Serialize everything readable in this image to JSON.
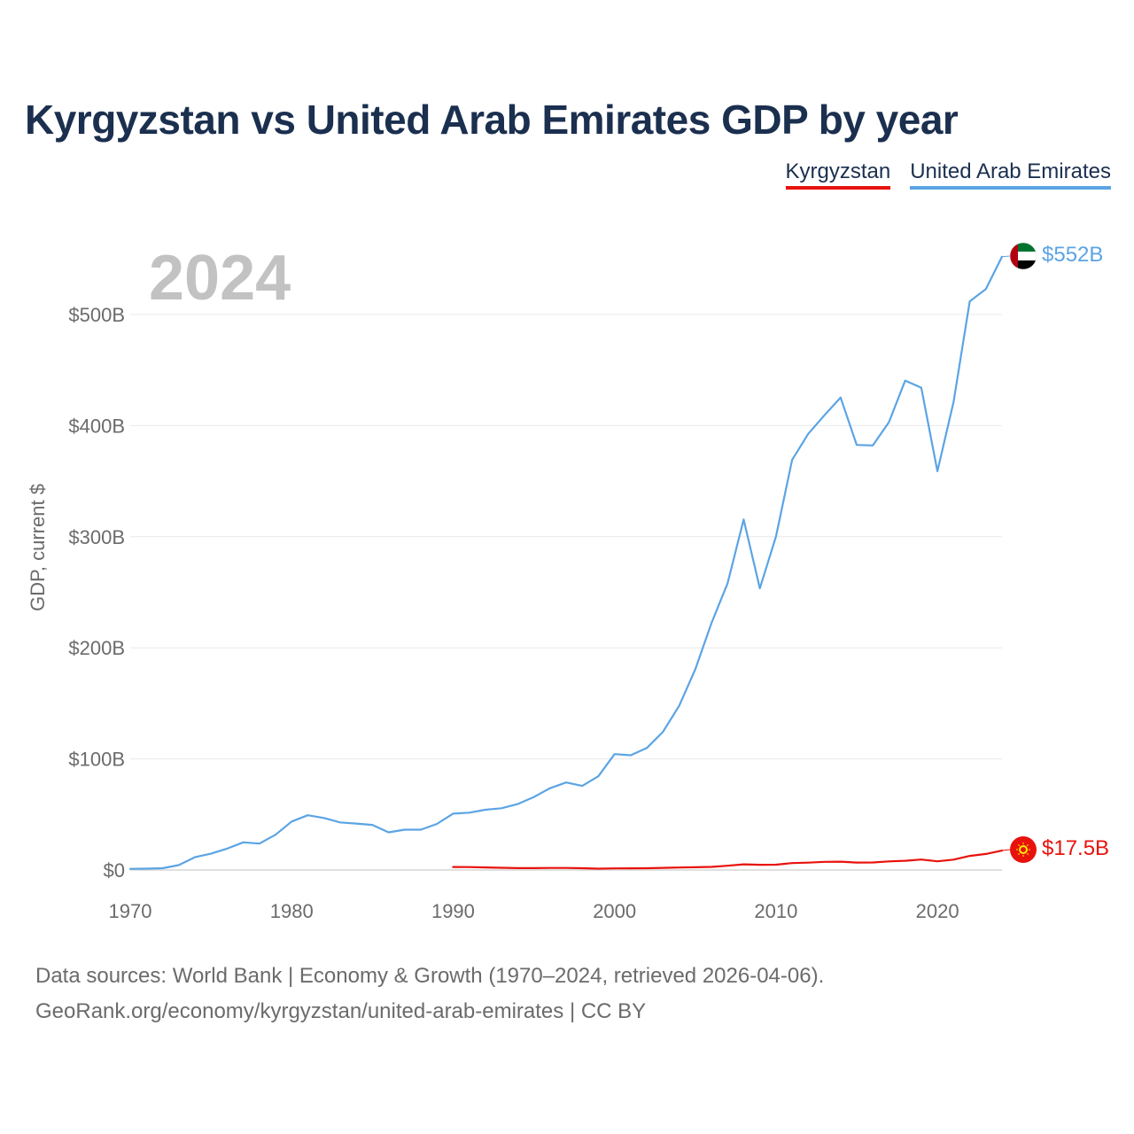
{
  "title": "Kyrgyzstan vs United Arab Emirates GDP by year",
  "legend": [
    {
      "label": "Kyrgyzstan",
      "color": "#e8120c"
    },
    {
      "label": "United Arab Emirates",
      "color": "#5ba4e5"
    }
  ],
  "year_label": "2024",
  "footer": {
    "line1": "Data sources: World Bank | Economy & Growth (1970–2024, retrieved 2026-04-06).",
    "line2": "GeoRank.org/economy/kyrgyzstan/united-arab-emirates | CC BY"
  },
  "chart_data": {
    "type": "line",
    "title": "Kyrgyzstan vs United Arab Emirates GDP by year",
    "xlabel": "",
    "ylabel": "GDP, current $",
    "xlim": [
      1970,
      2024
    ],
    "ylim": [
      0,
      560
    ],
    "unit": "billions of current US$",
    "x_ticks": [
      1970,
      1980,
      1990,
      2000,
      2010,
      2020
    ],
    "x_tick_labels": [
      "1970",
      "1980",
      "1990",
      "2000",
      "2010",
      "2020"
    ],
    "y_ticks": [
      0,
      100,
      200,
      300,
      400,
      500
    ],
    "y_tick_labels": [
      "$0",
      "$100B",
      "$200B",
      "$300B",
      "$400B",
      "$500B"
    ],
    "grid": true,
    "series": [
      {
        "name": "United Arab Emirates",
        "color": "#5ba4e5",
        "end_label": "$552B",
        "flag_icon": "uae-flag-icon",
        "x": [
          1970,
          1971,
          1972,
          1973,
          1974,
          1975,
          1976,
          1977,
          1978,
          1979,
          1980,
          1981,
          1982,
          1983,
          1984,
          1985,
          1986,
          1987,
          1988,
          1989,
          1990,
          1991,
          1992,
          1993,
          1994,
          1995,
          1996,
          1997,
          1998,
          1999,
          2000,
          2001,
          2002,
          2003,
          2004,
          2005,
          2006,
          2007,
          2008,
          2009,
          2010,
          2011,
          2012,
          2013,
          2014,
          2015,
          2016,
          2017,
          2018,
          2019,
          2020,
          2021,
          2022,
          2023,
          2024
        ],
        "values": [
          1,
          1.2,
          1.6,
          4.4,
          11.5,
          14.7,
          19.2,
          24.9,
          23.8,
          31.7,
          43.6,
          49.3,
          46.8,
          42.8,
          41.8,
          40.6,
          33.9,
          36.3,
          36.3,
          41.5,
          50.7,
          51.6,
          54.2,
          55.6,
          59.3,
          65.7,
          73.6,
          78.8,
          75.7,
          84.4,
          104.3,
          103.3,
          109.8,
          124.3,
          147.8,
          180.6,
          222.1,
          257.9,
          315.5,
          253.5,
          300.2,
          369.1,
          392.6,
          409.3,
          425.3,
          382.6,
          382.1,
          403.1,
          440.5,
          434.1,
          358.9,
          421.1,
          511.9,
          523.0,
          552.0
        ]
      },
      {
        "name": "Kyrgyzstan",
        "color": "#e8120c",
        "end_label": "$17.5B",
        "flag_icon": "kyrgyzstan-flag-icon",
        "x": [
          1990,
          1991,
          1992,
          1993,
          1994,
          1995,
          1996,
          1997,
          1998,
          1999,
          2000,
          2001,
          2002,
          2003,
          2004,
          2005,
          2006,
          2007,
          2008,
          2009,
          2010,
          2011,
          2012,
          2013,
          2014,
          2015,
          2016,
          2017,
          2018,
          2019,
          2020,
          2021,
          2022,
          2023,
          2024
        ],
        "values": [
          2.7,
          2.6,
          2.3,
          2.0,
          1.7,
          1.7,
          1.8,
          1.8,
          1.6,
          1.2,
          1.4,
          1.5,
          1.6,
          1.9,
          2.2,
          2.5,
          2.8,
          3.8,
          5.1,
          4.7,
          4.8,
          6.2,
          6.6,
          7.3,
          7.5,
          6.7,
          6.8,
          7.7,
          8.3,
          9.4,
          7.8,
          9.3,
          12.7,
          14.4,
          17.5
        ]
      }
    ]
  }
}
